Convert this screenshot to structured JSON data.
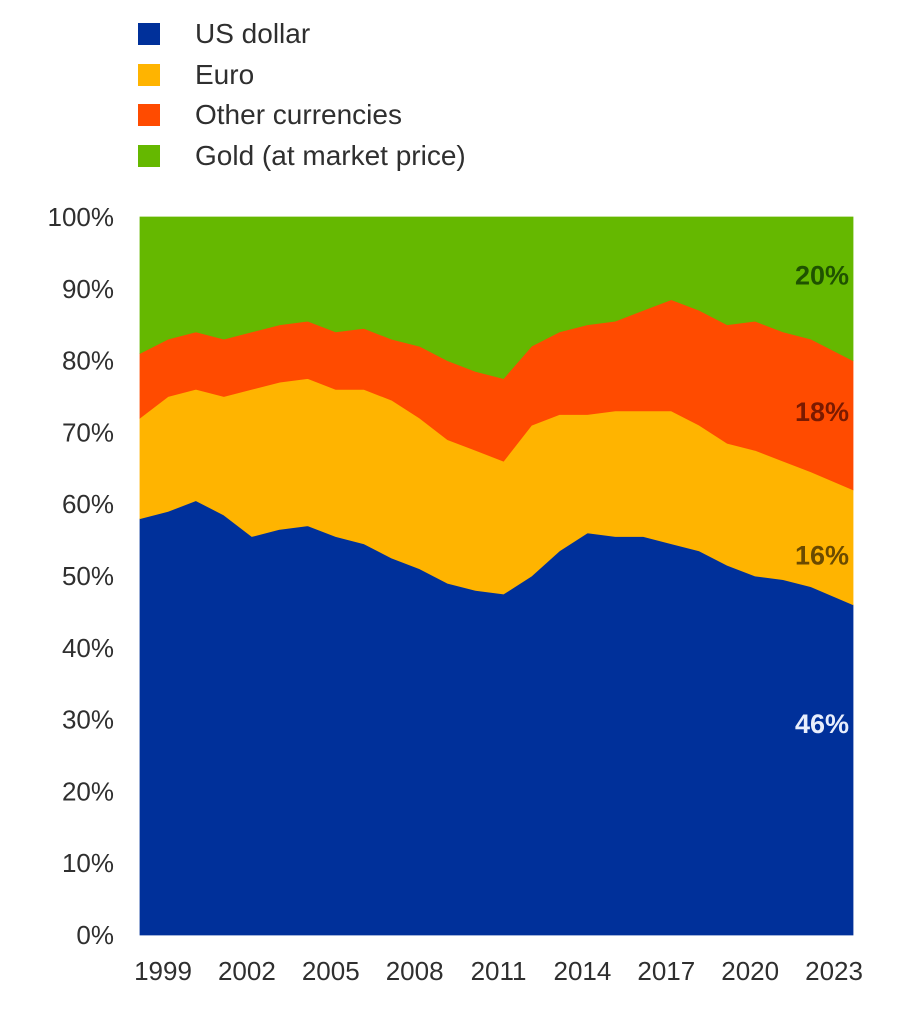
{
  "chart_data": {
    "type": "area",
    "stacked": true,
    "title": "",
    "xlabel": "",
    "ylabel": "",
    "ylim": [
      0,
      100
    ],
    "xlim": [
      1999,
      2024.5
    ],
    "y_unit": "%",
    "grid": false,
    "legend_position": "top-left",
    "x_ticks": [
      "1999",
      "2002",
      "2005",
      "2008",
      "2011",
      "2014",
      "2017",
      "2020",
      "2023"
    ],
    "x_tick_values": [
      1999,
      2002,
      2005,
      2008,
      2011,
      2014,
      2017,
      2020,
      2023
    ],
    "y_ticks": [
      "0%",
      "10%",
      "20%",
      "30%",
      "40%",
      "50%",
      "60%",
      "70%",
      "80%",
      "90%",
      "100%"
    ],
    "y_tick_values": [
      0,
      10,
      20,
      30,
      40,
      50,
      60,
      70,
      80,
      90,
      100
    ],
    "x": [
      1999,
      2000,
      2001,
      2002,
      2003,
      2004,
      2005,
      2006,
      2007,
      2008,
      2009,
      2010,
      2011,
      2012,
      2013,
      2014,
      2015,
      2016,
      2017,
      2018,
      2019,
      2020,
      2021,
      2022,
      2023,
      2024.5
    ],
    "series": [
      {
        "name": "US dollar",
        "color": "#00309a",
        "values": [
          58,
          59,
          60.5,
          58.5,
          55.5,
          56.5,
          57,
          55.5,
          54.5,
          52.5,
          51,
          49,
          48,
          47.5,
          50,
          53.5,
          56,
          55.5,
          55.5,
          54.5,
          53.5,
          51.5,
          50,
          49.5,
          48.5,
          46
        ]
      },
      {
        "name": "Euro",
        "color": "#ffb400",
        "values": [
          14,
          16,
          15.5,
          16.5,
          20.5,
          20.5,
          20.5,
          20.5,
          21.5,
          22,
          21,
          20,
          19.5,
          18.5,
          21,
          19,
          16.5,
          17.5,
          17.5,
          18.5,
          17.5,
          17,
          17.5,
          16.5,
          16,
          16
        ]
      },
      {
        "name": "Other currencies",
        "color": "#ff4b00",
        "values": [
          9,
          8,
          8,
          8,
          8,
          8,
          8,
          8,
          8.5,
          8.5,
          10,
          11,
          11,
          11.5,
          11,
          11.5,
          12.5,
          12.5,
          14,
          15.5,
          16,
          16.5,
          18,
          18,
          18.5,
          18
        ]
      },
      {
        "name": "Gold (at market price)",
        "color": "#65b800",
        "values": [
          19,
          17,
          16,
          17,
          16,
          15,
          14.5,
          16,
          15.5,
          17,
          18,
          20,
          21.5,
          22.5,
          18,
          16,
          15,
          14.5,
          13,
          11.5,
          13,
          15,
          14.5,
          16,
          17,
          20
        ]
      }
    ],
    "end_labels": [
      {
        "series": "US dollar",
        "text": "46%",
        "color": "#e8eefc"
      },
      {
        "series": "Euro",
        "text": "16%",
        "color": "#6b4a00"
      },
      {
        "series": "Other currencies",
        "text": "18%",
        "color": "#7a1a00"
      },
      {
        "series": "Gold (at market price)",
        "text": "20%",
        "color": "#1f5200"
      }
    ]
  }
}
